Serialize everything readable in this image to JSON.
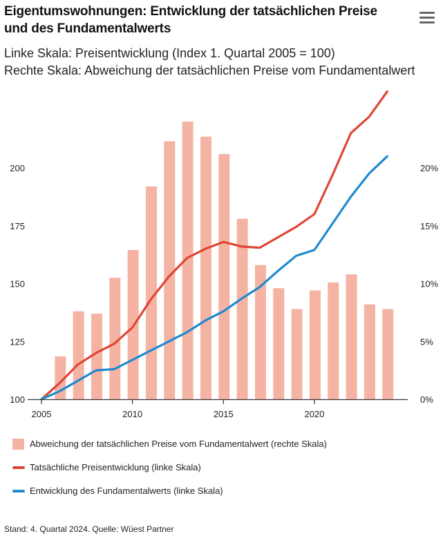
{
  "header": {
    "title": "Eigentumswohnungen: Entwicklung der tatsächlichen Preise und des Fundamentalwerts",
    "subtitle_line1": "Linke Skala: Preisentwicklung (Index 1. Quartal 2005 = 100)",
    "subtitle_line2": "Rechte Skala: Abweichung der tatsächlichen Preise vom Fundamentalwert",
    "menu_icon": "hamburger-menu-icon"
  },
  "legend": {
    "bars": "Abweichung der tatsächlichen Preise vom Fundamentalwert (rechte Skala)",
    "actual": "Tatsächliche Preisentwicklung (linke Skala)",
    "fundamental": "Entwicklung des Fundamentalwerts (linke Skala)"
  },
  "source": "Stand: 4. Quartal 2024. Quelle: Wüest Partner",
  "chart_data": {
    "type": "bar+line",
    "left_axis": {
      "min": 100,
      "max": 220,
      "ticks": [
        100,
        125,
        150,
        175,
        200
      ]
    },
    "right_axis": {
      "min": 0,
      "max": 24,
      "ticks": [
        0,
        5,
        10,
        15,
        20
      ],
      "tick_labels": [
        "0%",
        "5%",
        "10%",
        "15%",
        "20%"
      ]
    },
    "x_axis": {
      "min": 2005,
      "max": 2024.75,
      "ticks": [
        2005,
        2010,
        2015,
        2020
      ]
    },
    "bars": {
      "name": "Abweichung der tatsächlichen Preise vom Fundamentalwert (rechte Skala)",
      "axis": "right",
      "color": "#f5b3a3",
      "x": [
        2006,
        2007,
        2008,
        2009,
        2010,
        2011,
        2012,
        2013,
        2014,
        2015,
        2016,
        2017,
        2018,
        2019,
        2020,
        2021,
        2022,
        2023,
        2024
      ],
      "values": [
        3.7,
        7.6,
        7.4,
        10.5,
        12.9,
        18.4,
        22.3,
        24.0,
        22.7,
        21.2,
        15.6,
        11.6,
        9.6,
        7.8,
        9.4,
        10.1,
        10.8,
        8.2,
        7.8
      ]
    },
    "series": [
      {
        "name": "Tatsächliche Preisentwicklung (linke Skala)",
        "axis": "left",
        "color": "#e04535",
        "x": [
          2005,
          2006,
          2007,
          2008,
          2009,
          2010,
          2011,
          2012,
          2013,
          2014,
          2015,
          2016,
          2017,
          2018,
          2019,
          2020,
          2021,
          2022,
          2023,
          2024
        ],
        "values": [
          100,
          107,
          115,
          120,
          124,
          131,
          143,
          153,
          161,
          165,
          168,
          166,
          165.5,
          170,
          174.5,
          180,
          197,
          215,
          222,
          233
        ]
      },
      {
        "name": "Entwicklung des Fundamentalwerts (linke Skala)",
        "axis": "left",
        "color": "#1e8ad0",
        "x": [
          2005,
          2006,
          2007,
          2008,
          2009,
          2010,
          2011,
          2012,
          2013,
          2014,
          2015,
          2016,
          2017,
          2018,
          2019,
          2020,
          2021,
          2022,
          2023,
          2024
        ],
        "values": [
          100,
          103.5,
          108,
          112.5,
          113,
          117,
          121,
          125,
          129,
          134,
          138,
          143.5,
          148.5,
          155.5,
          162,
          164.5,
          176,
          187.5,
          197.5,
          205
        ]
      }
    ]
  }
}
